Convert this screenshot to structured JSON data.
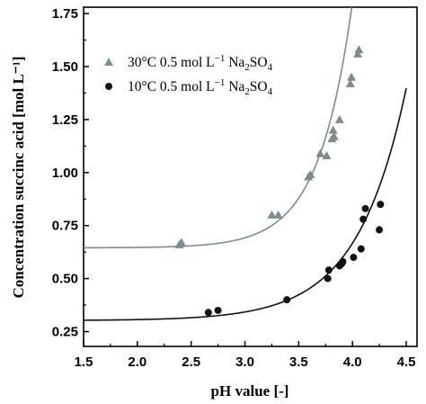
{
  "chart_data": {
    "type": "scatter",
    "xlabel": "pH value [-]",
    "ylabel": "Concentration succinc acid [mol L⁻¹]",
    "xlim": [
      1.5,
      4.6
    ],
    "ylim": [
      0.18,
      1.78
    ],
    "xticks": [
      "1.5",
      "2.0",
      "2.5",
      "3.0",
      "3.5",
      "4.0",
      "4.5"
    ],
    "xtick_values": [
      1.5,
      2.0,
      2.5,
      3.0,
      3.5,
      4.0,
      4.5
    ],
    "yticks": [
      "0.25",
      "0.50",
      "0.75",
      "1.00",
      "1.25",
      "1.50",
      "1.75"
    ],
    "ytick_values": [
      0.25,
      0.5,
      0.75,
      1.0,
      1.25,
      1.5,
      1.75
    ],
    "grid": false,
    "legend_position": "top-left",
    "series": [
      {
        "name": "30°C 0.5 mol L⁻¹ Na₂SO₄",
        "legend_main": "30°C 0.5 mol L",
        "legend_sup": "−1",
        "legend_mid": " Na",
        "legend_sub1": "2",
        "legend_mid2": "SO",
        "legend_sub2": "4",
        "marker": "triangle",
        "color": "#7f8c8d",
        "x": [
          2.39,
          2.41,
          3.25,
          3.31,
          3.59,
          3.61,
          3.7,
          3.76,
          3.81,
          3.82,
          3.83,
          3.88,
          3.98,
          3.99,
          4.05,
          4.06
        ],
        "y": [
          0.66,
          0.67,
          0.8,
          0.8,
          0.98,
          0.99,
          1.09,
          1.08,
          1.16,
          1.2,
          1.17,
          1.25,
          1.42,
          1.45,
          1.56,
          1.58
        ],
        "fit": {
          "base": 0.645,
          "amp": 3.2e-06,
          "k": 3.2
        }
      },
      {
        "name": "10°C 0.5 mol L⁻¹ Na₂SO₄",
        "legend_main": "10°C 0.5 mol L",
        "legend_sup": "−1",
        "legend_mid": " Na",
        "legend_sub1": "2",
        "legend_mid2": "SO",
        "legend_sub2": "4",
        "marker": "circle",
        "color": "#111111",
        "x": [
          2.66,
          2.75,
          3.39,
          3.77,
          3.78,
          3.88,
          3.9,
          3.91,
          4.01,
          4.08,
          4.1,
          4.12,
          4.25,
          4.26
        ],
        "y": [
          0.34,
          0.35,
          0.4,
          0.5,
          0.54,
          0.56,
          0.57,
          0.58,
          0.6,
          0.64,
          0.78,
          0.83,
          0.73,
          0.85
        ],
        "fit": {
          "base": 0.302,
          "amp": 5.5e-05,
          "k": 2.2
        }
      }
    ]
  }
}
